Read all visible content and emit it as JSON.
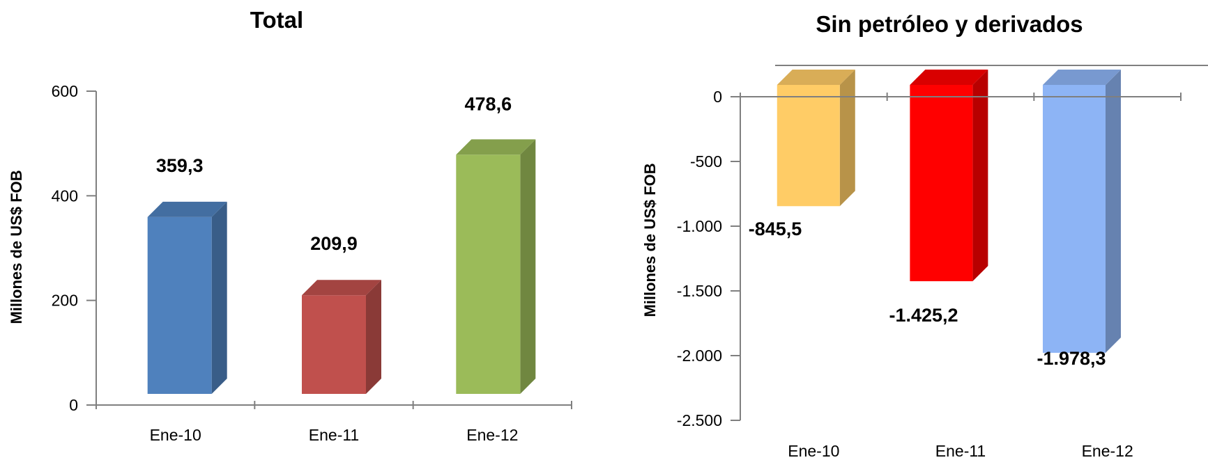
{
  "chart_data": [
    {
      "type": "bar",
      "title": "Total",
      "ylabel": "Millones de US$ FOB",
      "xlabel": "",
      "categories": [
        "Ene-10",
        "Ene-11",
        "Ene-12"
      ],
      "values": [
        359.3,
        209.9,
        478.6
      ],
      "data_labels": [
        "359,3",
        "209,9",
        "478,6"
      ],
      "ylim": [
        0,
        600
      ],
      "yticks": [
        0,
        200,
        400,
        600
      ],
      "ytick_labels": [
        "0",
        "200",
        "400",
        "600"
      ],
      "colors": [
        "#4F81BD",
        "#C0504D",
        "#9BBB59"
      ],
      "grid": false,
      "style": "3d-column"
    },
    {
      "type": "bar",
      "title": "Sin petróleo y derivados",
      "ylabel": "Millones de US$ FOB",
      "xlabel": "",
      "categories": [
        "Ene-10",
        "Ene-11",
        "Ene-12"
      ],
      "values": [
        -845.5,
        -1425.2,
        -1978.3
      ],
      "data_labels": [
        "-845,5",
        "-1.425,2",
        "-1.978,3"
      ],
      "ylim": [
        -2500,
        0
      ],
      "yticks": [
        0,
        -500,
        -1000,
        -1500,
        -2000,
        -2500
      ],
      "ytick_labels": [
        "0",
        "-500",
        "-1.000",
        "-1.500",
        "-2.000",
        "-2.500"
      ],
      "colors": [
        "#FFCC66",
        "#FF0000",
        "#8DB4F5"
      ],
      "grid": false,
      "style": "3d-column"
    }
  ]
}
